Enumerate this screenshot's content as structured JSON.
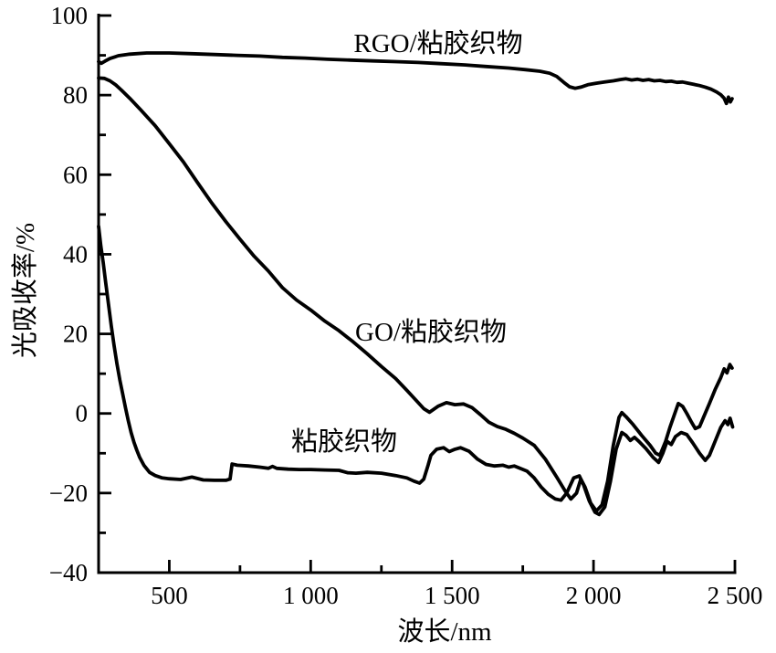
{
  "figure": {
    "background_color": "#ffffff",
    "line_color": "#000000",
    "text_color": "#000000"
  },
  "chart_data": {
    "type": "line",
    "title": "",
    "xlabel": "波长/nm",
    "ylabel": "光吸收率/%",
    "xlim": [
      250,
      2500
    ],
    "ylim": [
      -40,
      100
    ],
    "grid": false,
    "legend_position": "inline-annotations",
    "x_major_ticks": [
      500,
      1000,
      1500,
      2000,
      2500
    ],
    "x_tick_labels": [
      "500",
      "1 000",
      "1 500",
      "2 000",
      "2 500"
    ],
    "x_minor_ticks": [
      750,
      1250,
      1750,
      2250
    ],
    "y_major_ticks": [
      100,
      80,
      60,
      40,
      20,
      0,
      -20,
      -40
    ],
    "y_tick_labels": [
      "100",
      "80",
      "60",
      "40",
      "20",
      "0",
      "−20",
      "−40"
    ],
    "y_minor_ticks": [
      90,
      70,
      50,
      30,
      10,
      -10,
      -30
    ],
    "series": [
      {
        "id": "rgo_viscose",
        "name": "RGO/粘胶织物",
        "points": [
          [
            250,
            88.4
          ],
          [
            260,
            88.0
          ],
          [
            272,
            88.5
          ],
          [
            290,
            89.2
          ],
          [
            320,
            89.9
          ],
          [
            360,
            90.3
          ],
          [
            420,
            90.6
          ],
          [
            500,
            90.6
          ],
          [
            580,
            90.4
          ],
          [
            660,
            90.2
          ],
          [
            740,
            90.0
          ],
          [
            820,
            89.8
          ],
          [
            900,
            89.5
          ],
          [
            980,
            89.3
          ],
          [
            1060,
            89.0
          ],
          [
            1140,
            88.8
          ],
          [
            1220,
            88.6
          ],
          [
            1300,
            88.4
          ],
          [
            1380,
            88.2
          ],
          [
            1460,
            87.9
          ],
          [
            1540,
            87.6
          ],
          [
            1620,
            87.2
          ],
          [
            1700,
            86.8
          ],
          [
            1760,
            86.4
          ],
          [
            1810,
            86.0
          ],
          [
            1845,
            85.5
          ],
          [
            1870,
            84.7
          ],
          [
            1895,
            83.2
          ],
          [
            1915,
            82.1
          ],
          [
            1935,
            81.7
          ],
          [
            1955,
            82.0
          ],
          [
            1980,
            82.6
          ],
          [
            2010,
            83.0
          ],
          [
            2040,
            83.3
          ],
          [
            2070,
            83.6
          ],
          [
            2095,
            83.9
          ],
          [
            2115,
            84.1
          ],
          [
            2135,
            83.8
          ],
          [
            2155,
            84.0
          ],
          [
            2175,
            83.7
          ],
          [
            2195,
            83.9
          ],
          [
            2215,
            83.6
          ],
          [
            2235,
            83.7
          ],
          [
            2255,
            83.4
          ],
          [
            2275,
            83.5
          ],
          [
            2295,
            83.2
          ],
          [
            2315,
            83.3
          ],
          [
            2335,
            83.0
          ],
          [
            2355,
            82.7
          ],
          [
            2375,
            82.4
          ],
          [
            2395,
            82.0
          ],
          [
            2415,
            81.5
          ],
          [
            2435,
            80.8
          ],
          [
            2450,
            80.1
          ],
          [
            2462,
            79.2
          ],
          [
            2470,
            77.9
          ],
          [
            2477,
            79.5
          ],
          [
            2484,
            78.3
          ],
          [
            2490,
            79.1
          ]
        ]
      },
      {
        "id": "go_viscose",
        "name": "GO/粘胶织物",
        "points": [
          [
            250,
            84.3
          ],
          [
            270,
            84.2
          ],
          [
            290,
            83.6
          ],
          [
            310,
            82.6
          ],
          [
            330,
            81.3
          ],
          [
            360,
            79.2
          ],
          [
            400,
            76.2
          ],
          [
            450,
            72.3
          ],
          [
            500,
            67.8
          ],
          [
            550,
            63.2
          ],
          [
            600,
            58.0
          ],
          [
            650,
            52.9
          ],
          [
            700,
            48.2
          ],
          [
            750,
            43.8
          ],
          [
            800,
            39.5
          ],
          [
            850,
            35.8
          ],
          [
            900,
            31.6
          ],
          [
            950,
            28.5
          ],
          [
            1000,
            26.0
          ],
          [
            1050,
            23.2
          ],
          [
            1100,
            20.8
          ],
          [
            1150,
            18.0
          ],
          [
            1200,
            15.0
          ],
          [
            1250,
            11.8
          ],
          [
            1300,
            8.8
          ],
          [
            1340,
            5.8
          ],
          [
            1370,
            3.5
          ],
          [
            1400,
            1.2
          ],
          [
            1420,
            0.3
          ],
          [
            1450,
            1.8
          ],
          [
            1480,
            2.7
          ],
          [
            1510,
            2.2
          ],
          [
            1540,
            2.4
          ],
          [
            1570,
            1.5
          ],
          [
            1600,
            -0.3
          ],
          [
            1630,
            -2.2
          ],
          [
            1660,
            -3.3
          ],
          [
            1690,
            -4.0
          ],
          [
            1720,
            -5.0
          ],
          [
            1750,
            -6.2
          ],
          [
            1790,
            -8.0
          ],
          [
            1830,
            -11.5
          ],
          [
            1870,
            -16.0
          ],
          [
            1900,
            -19.5
          ],
          [
            1920,
            -21.5
          ],
          [
            1940,
            -20.0
          ],
          [
            1955,
            -16.5
          ],
          [
            1970,
            -18.5
          ],
          [
            1990,
            -22.5
          ],
          [
            2010,
            -24.5
          ],
          [
            2030,
            -23.0
          ],
          [
            2050,
            -17.0
          ],
          [
            2070,
            -8.0
          ],
          [
            2090,
            -1.0
          ],
          [
            2100,
            0.2
          ],
          [
            2115,
            -0.8
          ],
          [
            2140,
            -2.8
          ],
          [
            2170,
            -5.5
          ],
          [
            2200,
            -8.0
          ],
          [
            2220,
            -10.0
          ],
          [
            2235,
            -10.5
          ],
          [
            2255,
            -7.0
          ],
          [
            2270,
            -3.5
          ],
          [
            2285,
            -0.5
          ],
          [
            2300,
            2.5
          ],
          [
            2315,
            1.8
          ],
          [
            2330,
            0.0
          ],
          [
            2345,
            -2.0
          ],
          [
            2360,
            -3.8
          ],
          [
            2375,
            -3.3
          ],
          [
            2390,
            -0.8
          ],
          [
            2410,
            2.5
          ],
          [
            2430,
            6.0
          ],
          [
            2450,
            9.0
          ],
          [
            2462,
            11.2
          ],
          [
            2472,
            10.2
          ],
          [
            2482,
            12.3
          ],
          [
            2490,
            11.4
          ]
        ]
      },
      {
        "id": "viscose",
        "name": "粘胶织物",
        "points": [
          [
            250,
            47.0
          ],
          [
            258,
            42.0
          ],
          [
            266,
            38.0
          ],
          [
            275,
            33.0
          ],
          [
            285,
            27.5
          ],
          [
            295,
            22.0
          ],
          [
            305,
            17.0
          ],
          [
            315,
            12.5
          ],
          [
            325,
            8.5
          ],
          [
            335,
            5.0
          ],
          [
            345,
            1.5
          ],
          [
            355,
            -1.8
          ],
          [
            365,
            -4.8
          ],
          [
            375,
            -7.2
          ],
          [
            385,
            -9.2
          ],
          [
            395,
            -11.0
          ],
          [
            410,
            -13.0
          ],
          [
            430,
            -14.8
          ],
          [
            450,
            -15.6
          ],
          [
            475,
            -16.2
          ],
          [
            500,
            -16.4
          ],
          [
            540,
            -16.6
          ],
          [
            580,
            -16.0
          ],
          [
            620,
            -16.7
          ],
          [
            660,
            -16.8
          ],
          [
            700,
            -16.8
          ],
          [
            715,
            -16.5
          ],
          [
            722,
            -12.7
          ],
          [
            740,
            -13.0
          ],
          [
            780,
            -13.2
          ],
          [
            820,
            -13.5
          ],
          [
            850,
            -13.8
          ],
          [
            865,
            -13.3
          ],
          [
            880,
            -13.8
          ],
          [
            920,
            -14.0
          ],
          [
            960,
            -14.1
          ],
          [
            1000,
            -14.1
          ],
          [
            1050,
            -14.2
          ],
          [
            1100,
            -14.3
          ],
          [
            1130,
            -14.9
          ],
          [
            1160,
            -15.0
          ],
          [
            1200,
            -14.8
          ],
          [
            1250,
            -15.0
          ],
          [
            1300,
            -15.6
          ],
          [
            1340,
            -16.2
          ],
          [
            1365,
            -17.0
          ],
          [
            1385,
            -17.5
          ],
          [
            1400,
            -16.5
          ],
          [
            1415,
            -13.0
          ],
          [
            1425,
            -10.5
          ],
          [
            1445,
            -9.0
          ],
          [
            1470,
            -8.6
          ],
          [
            1490,
            -9.6
          ],
          [
            1510,
            -9.0
          ],
          [
            1530,
            -8.6
          ],
          [
            1560,
            -9.5
          ],
          [
            1590,
            -11.5
          ],
          [
            1620,
            -12.8
          ],
          [
            1650,
            -13.2
          ],
          [
            1680,
            -13.0
          ],
          [
            1700,
            -13.5
          ],
          [
            1720,
            -13.2
          ],
          [
            1740,
            -13.8
          ],
          [
            1765,
            -14.5
          ],
          [
            1790,
            -16.2
          ],
          [
            1815,
            -18.5
          ],
          [
            1840,
            -20.3
          ],
          [
            1865,
            -21.5
          ],
          [
            1885,
            -21.8
          ],
          [
            1905,
            -20.0
          ],
          [
            1930,
            -16.2
          ],
          [
            1950,
            -15.7
          ],
          [
            1965,
            -18.0
          ],
          [
            1985,
            -22.0
          ],
          [
            2005,
            -24.8
          ],
          [
            2020,
            -25.4
          ],
          [
            2040,
            -23.5
          ],
          [
            2060,
            -17.0
          ],
          [
            2080,
            -9.0
          ],
          [
            2100,
            -4.8
          ],
          [
            2115,
            -5.5
          ],
          [
            2130,
            -6.8
          ],
          [
            2145,
            -6.0
          ],
          [
            2160,
            -7.0
          ],
          [
            2185,
            -8.8
          ],
          [
            2210,
            -11.0
          ],
          [
            2230,
            -12.3
          ],
          [
            2245,
            -10.0
          ],
          [
            2260,
            -7.0
          ],
          [
            2275,
            -7.8
          ],
          [
            2290,
            -5.8
          ],
          [
            2310,
            -4.8
          ],
          [
            2330,
            -5.3
          ],
          [
            2350,
            -7.3
          ],
          [
            2375,
            -10.0
          ],
          [
            2395,
            -11.8
          ],
          [
            2410,
            -10.5
          ],
          [
            2430,
            -7.0
          ],
          [
            2450,
            -3.5
          ],
          [
            2465,
            -1.8
          ],
          [
            2475,
            -2.8
          ],
          [
            2483,
            -1.2
          ],
          [
            2492,
            -3.4
          ]
        ]
      }
    ]
  }
}
